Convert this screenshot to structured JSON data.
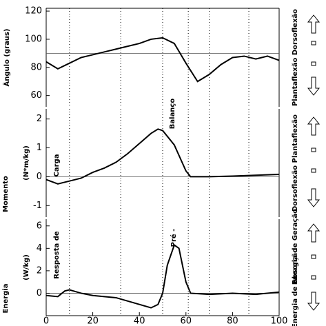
{
  "chart_data": [
    {
      "type": "line",
      "y_label": [
        "Ângulo (graus)"
      ],
      "right_label": [
        "Plantaflexão Dorsoflexão"
      ],
      "x": [
        0,
        5,
        10,
        15,
        20,
        25,
        30,
        35,
        40,
        45,
        50,
        55,
        60,
        65,
        70,
        75,
        80,
        85,
        90,
        95,
        100
      ],
      "values": [
        84,
        79,
        83,
        87,
        89,
        91,
        93,
        95,
        97,
        100,
        101,
        97,
        83,
        70,
        75,
        82,
        87,
        88,
        86,
        88,
        85
      ],
      "color": "#000000",
      "ylim": [
        52,
        122
      ],
      "yticks": [
        60,
        80,
        100,
        120
      ],
      "hline": 90,
      "vlines": [
        10,
        32,
        50,
        61,
        70,
        87
      ],
      "annotations": []
    },
    {
      "type": "line",
      "y_label": [
        "Momento",
        "(N*m/kg)"
      ],
      "right_label": [
        "Dorsoflexão Plantaflexão"
      ],
      "x": [
        0,
        5,
        10,
        15,
        20,
        25,
        30,
        35,
        40,
        45,
        48,
        50,
        55,
        60,
        62,
        65,
        70,
        80,
        90,
        100
      ],
      "values": [
        -0.1,
        -0.25,
        -0.15,
        -0.05,
        0.15,
        0.3,
        0.5,
        0.8,
        1.15,
        1.5,
        1.65,
        1.6,
        1.1,
        0.2,
        0,
        0,
        0,
        0.02,
        0.05,
        0.08
      ],
      "color": "#000000",
      "ylim": [
        -1.4,
        2.35
      ],
      "yticks": [
        -1,
        0,
        1,
        2
      ],
      "hline": 0,
      "vlines": [
        10,
        32,
        50,
        61,
        70,
        87
      ],
      "annotations": [
        "Carga",
        "Balanço"
      ]
    },
    {
      "type": "line",
      "y_label": [
        "Energia",
        "(W/kg)"
      ],
      "right_label": [
        "Energia de Absorção",
        "Energia de Geração"
      ],
      "x": [
        0,
        5,
        8,
        10,
        15,
        20,
        25,
        30,
        35,
        40,
        45,
        48,
        50,
        52,
        55,
        57,
        60,
        62,
        70,
        80,
        90,
        100
      ],
      "values": [
        -0.2,
        -0.3,
        0.2,
        0.3,
        0,
        -0.2,
        -0.3,
        -0.4,
        -0.7,
        -1,
        -1.3,
        -1,
        0,
        2.5,
        4.3,
        4,
        1,
        0,
        -0.1,
        0,
        -0.1,
        0.1
      ],
      "color": "#000000",
      "ylim": [
        -2,
        6.6
      ],
      "yticks": [
        0,
        2,
        4,
        6
      ],
      "hline": 0,
      "vlines": [
        10,
        32,
        50,
        61,
        70,
        87
      ],
      "annotations": [
        "Resposta de",
        "Pré -"
      ],
      "xlim": [
        0,
        100
      ],
      "xticks": [
        0,
        20,
        40,
        60,
        80,
        100
      ]
    }
  ]
}
